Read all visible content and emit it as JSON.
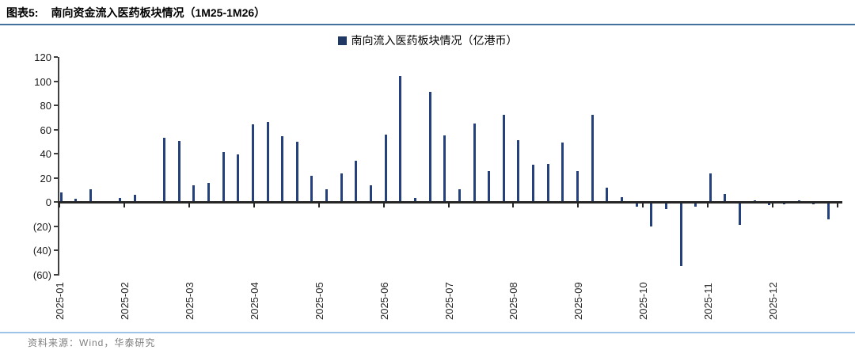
{
  "header": {
    "figure_label": "图表5:",
    "title": "南向资金流入医药板块情况（1M25-1M26）"
  },
  "legend": {
    "label": "南向流入医药板块情况（亿港币）",
    "marker_color": "#1F3864"
  },
  "chart_data": {
    "type": "bar",
    "title": "南向流入医药板块情况（亿港币）",
    "x_tick_labels": [
      "2025-01",
      "2025-02",
      "2025-03",
      "2025-04",
      "2025-05",
      "2025-06",
      "2025-07",
      "2025-08",
      "2025-09",
      "2025-10",
      "2025-11",
      "2025-12"
    ],
    "y_tick_values": [
      120,
      100,
      80,
      60,
      40,
      20,
      0,
      -20,
      -40,
      -60
    ],
    "y_tick_labels": [
      "120",
      "100",
      "80",
      "60",
      "40",
      "20",
      "0",
      "(20)",
      "(40)",
      "(60)"
    ],
    "ylim": [
      -60,
      120
    ],
    "grid": false,
    "legend_position": "top-center",
    "bar_color": "#24417E",
    "values": [
      8,
      3,
      11,
      1,
      3.5,
      6,
      1,
      53.5,
      50.5,
      14,
      16,
      41.5,
      39.5,
      64.5,
      66.5,
      54.5,
      50,
      21.5,
      11,
      23.5,
      34.5,
      14,
      56,
      104,
      3.5,
      91,
      55,
      10.5,
      65,
      25.5,
      72.5,
      51,
      31,
      31.5,
      49,
      25.5,
      72.5,
      12,
      4,
      -4,
      -20,
      -6,
      -52.5,
      -3.5,
      23.5,
      7,
      -18.5,
      1.5,
      -2.5,
      -1.5,
      1.5,
      -2,
      -14.5
    ]
  },
  "footer": {
    "source": "资料来源：Wind，华泰研究"
  }
}
